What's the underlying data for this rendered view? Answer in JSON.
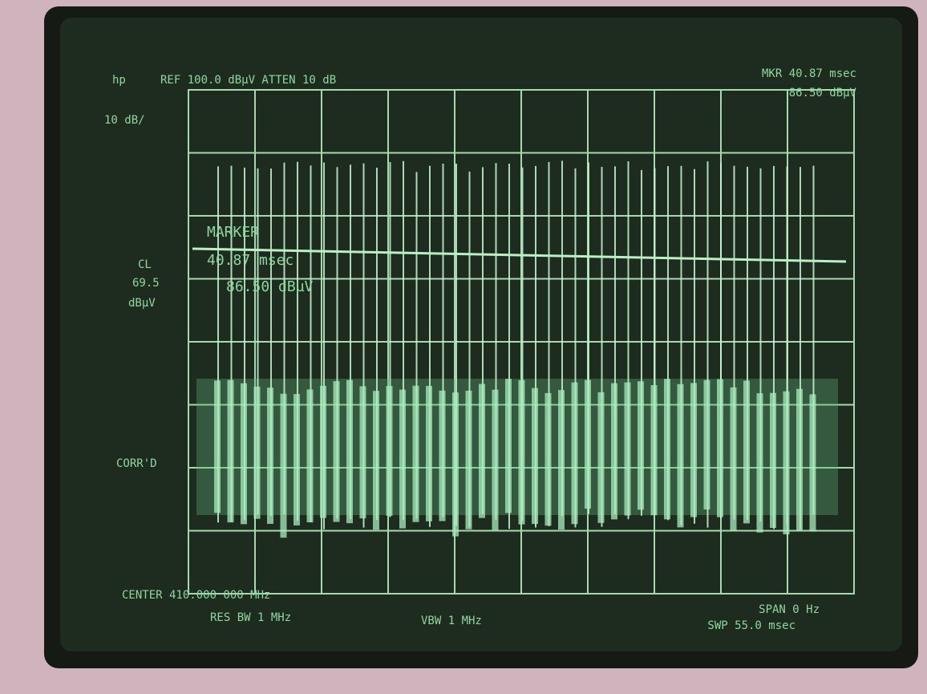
{
  "screen": {
    "logo": "hp",
    "header_left": "REF 100.0 dBµV ATTEN 10 dB",
    "header_right_1": "MKR 40.87 msec",
    "header_right_2": "86.50 dBµV",
    "scale": "10 dB/",
    "marker_title": "MARKER",
    "marker_time": "40.87 msec",
    "marker_level": "86.50 dBµV",
    "display_line_label": "CL",
    "display_line_value": "69.5",
    "display_line_unit": "dBµV",
    "correction": "CORR'D",
    "center": "CENTER 410.000 000 MHz",
    "res_bw": "RES BW 1 MHz",
    "vbw": "VBW 1 MHz",
    "span": "SPAN 0 Hz",
    "sweep": "SWP 55.0 msec"
  }
}
